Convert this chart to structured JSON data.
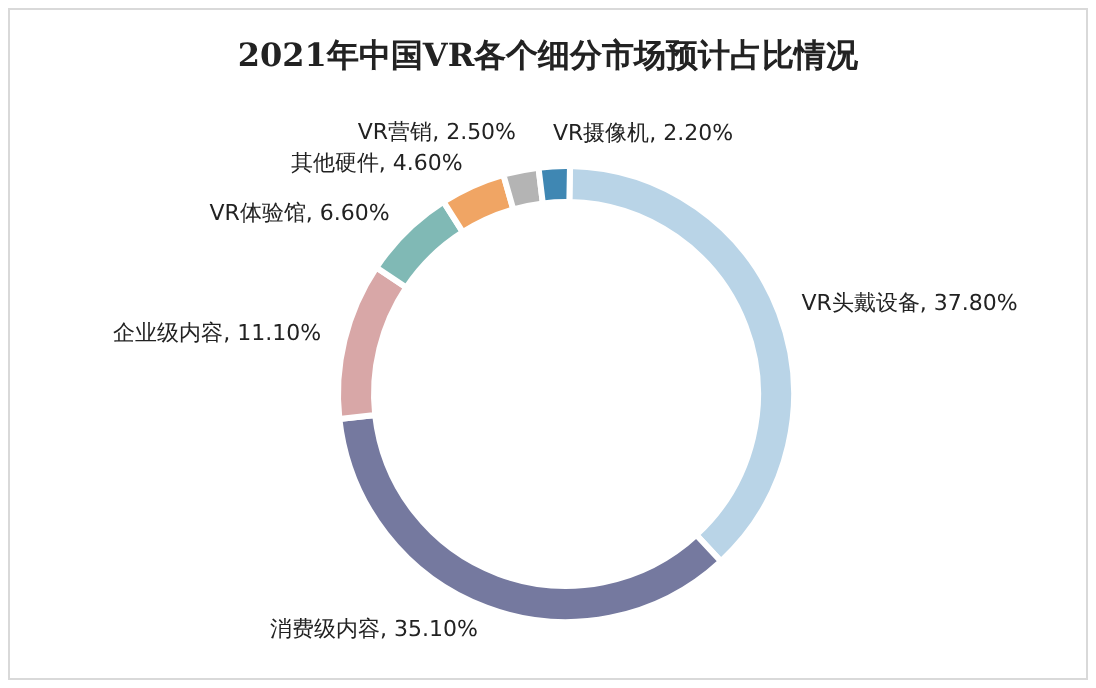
{
  "chart_data": {
    "type": "donut",
    "title": "2021年中国VR各个细分市场预计占比情况",
    "categories": [
      "VR头戴设备",
      "消费级内容",
      "企业级内容",
      "VR体验馆",
      "其他硬件",
      "VR营销",
      "VR摄像机"
    ],
    "values": [
      37.8,
      35.1,
      11.1,
      6.6,
      4.6,
      2.5,
      2.2
    ],
    "value_labels": [
      "37.80%",
      "35.10%",
      "11.10%",
      "6.60%",
      "4.60%",
      "2.50%",
      "2.20%"
    ],
    "colors": [
      "#b9d4e7",
      "#75799f",
      "#d8a7a7",
      "#80b9b5",
      "#f0a564",
      "#b4b4b4",
      "#3f87b3"
    ],
    "legend": false
  }
}
